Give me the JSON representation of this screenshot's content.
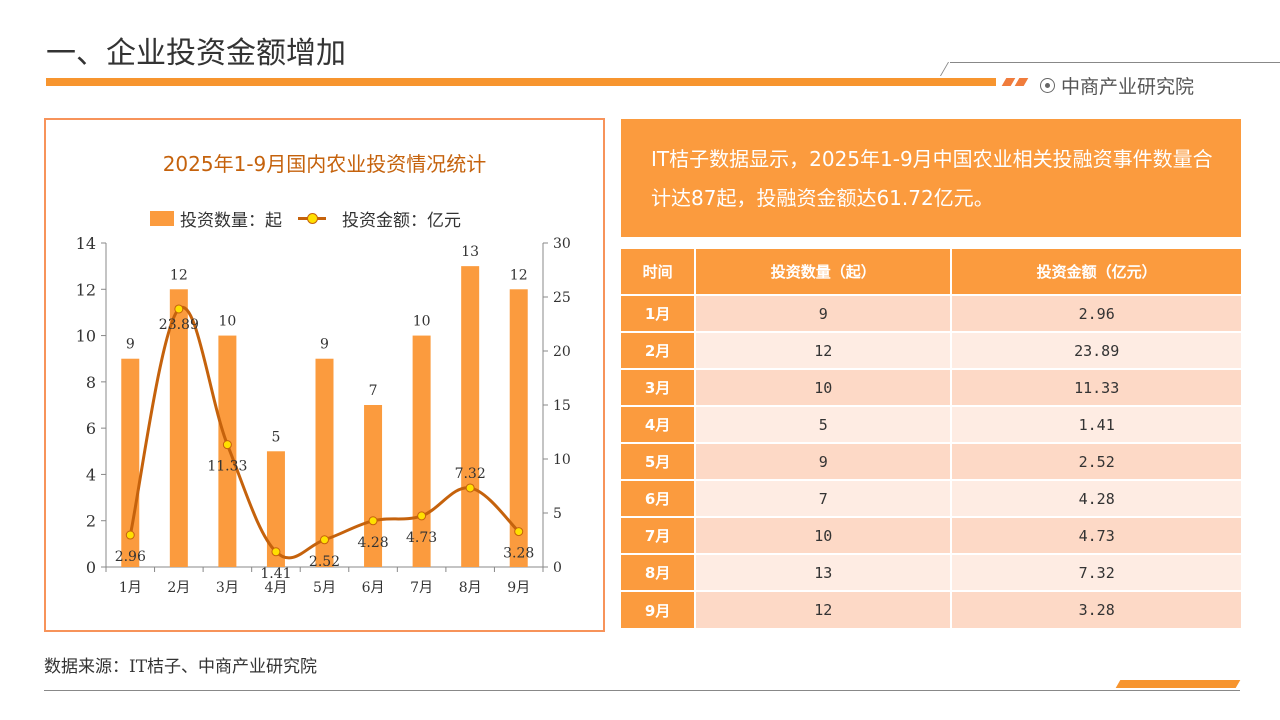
{
  "header": {
    "title": "一、企业投资金额增加",
    "brand": "中商产业研究院"
  },
  "chart_data": {
    "type": "bar+line",
    "title": "2025年1-9月国内农业投资情况统计",
    "categories": [
      "1月",
      "2月",
      "3月",
      "4月",
      "5月",
      "6月",
      "7月",
      "8月",
      "9月"
    ],
    "series": [
      {
        "name": "投资数量：起",
        "type": "bar",
        "axis": "left",
        "values": [
          9,
          12,
          10,
          5,
          9,
          7,
          10,
          13,
          12
        ]
      },
      {
        "name": "投资金额：亿元",
        "type": "line",
        "axis": "right",
        "values": [
          2.96,
          23.89,
          11.33,
          1.41,
          2.52,
          4.28,
          4.73,
          7.32,
          3.28
        ]
      }
    ],
    "ylim_left": [
      0,
      14
    ],
    "yticks_left": [
      0,
      2,
      4,
      6,
      8,
      10,
      12,
      14
    ],
    "ylim_right": [
      0,
      30
    ],
    "yticks_right": [
      0,
      5,
      10,
      15,
      20,
      25,
      30
    ],
    "legend": "top",
    "colors": {
      "bar": "#fb9b3e",
      "line": "#c5620c",
      "marker": "#ffe000"
    }
  },
  "info": "IT桔子数据显示，2025年1-9月中国农业相关投融资事件数量合计达87起，投融资金额达61.72亿元。",
  "table": {
    "headers": [
      "时间",
      "投资数量（起）",
      "投资金额（亿元）"
    ],
    "rows": [
      [
        "1月",
        "9",
        "2.96"
      ],
      [
        "2月",
        "12",
        "23.89"
      ],
      [
        "3月",
        "10",
        "11.33"
      ],
      [
        "4月",
        "5",
        "1.41"
      ],
      [
        "5月",
        "9",
        "2.52"
      ],
      [
        "6月",
        "7",
        "4.28"
      ],
      [
        "7月",
        "10",
        "4.73"
      ],
      [
        "8月",
        "13",
        "7.32"
      ],
      [
        "9月",
        "12",
        "3.28"
      ]
    ]
  },
  "source": "数据来源：IT桔子、中商产业研究院"
}
